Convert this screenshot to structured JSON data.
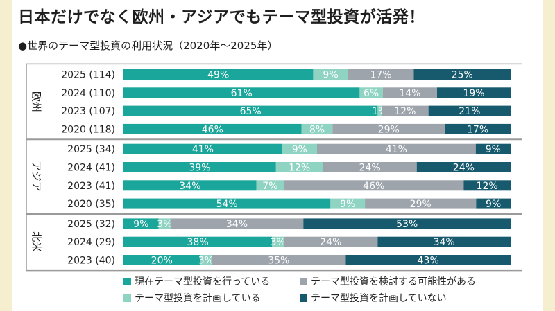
{
  "title": "日本だけでなく欧州・アジアでもテーマ型投資が活発！",
  "subtitle": "●世界のテーマ型投資の利用状況（2020年～2025年）",
  "colors": {
    "current": "#1aa69a",
    "planning": "#8fd3c2",
    "considering": "#9ea4ac",
    "not_planning": "#175a6e",
    "background": "#f6efcf"
  },
  "chart_data": {
    "type": "bar",
    "orientation": "horizontal",
    "stacked": true,
    "percent": true,
    "series": [
      {
        "key": "current",
        "name": "現在テーマ型投資を行っている"
      },
      {
        "key": "planning",
        "name": "テーマ型投資を計画している"
      },
      {
        "key": "considering",
        "name": "テーマ型投資を検討する可能性がある"
      },
      {
        "key": "not_planning",
        "name": "テーマ型投資を計画していない"
      }
    ],
    "groups": [
      {
        "name": "欧州",
        "rows": [
          {
            "label": "2025 (114)",
            "values": [
              49,
              9,
              17,
              25
            ],
            "labels": [
              "49%",
              "9%",
              "17%",
              "25%"
            ]
          },
          {
            "label": "2024 (110)",
            "values": [
              61,
              6,
              14,
              19
            ],
            "labels": [
              "61%",
              "6%",
              "14%",
              "19%"
            ]
          },
          {
            "label": "2023 (107)",
            "values": [
              65,
              1,
              12,
              21
            ],
            "labels": [
              "65%",
              "1%",
              "12%",
              "21%"
            ]
          },
          {
            "label": "2020 (118)",
            "values": [
              46,
              8,
              29,
              17
            ],
            "labels": [
              "46%",
              "8%",
              "29%",
              "17%"
            ]
          }
        ]
      },
      {
        "name": "アジア",
        "rows": [
          {
            "label": "2025 (34)",
            "values": [
              41,
              9,
              41,
              9
            ],
            "labels": [
              "41%",
              "9%",
              "41%",
              "9%"
            ]
          },
          {
            "label": "2024 (41)",
            "values": [
              39,
              12,
              24,
              24
            ],
            "labels": [
              "39%",
              "12%",
              "24%",
              "24%"
            ]
          },
          {
            "label": "2023 (41)",
            "values": [
              34,
              7,
              46,
              12
            ],
            "labels": [
              "34%",
              "7%",
              "46%",
              "12%"
            ]
          },
          {
            "label": "2020 (35)",
            "values": [
              54,
              9,
              29,
              9
            ],
            "labels": [
              "54%",
              "9%",
              "29%",
              "9%"
            ]
          }
        ]
      },
      {
        "name": "北米",
        "rows": [
          {
            "label": "2025 (32)",
            "values": [
              9,
              3,
              34,
              53
            ],
            "labels": [
              "9%",
              "3%",
              "34%",
              "53%"
            ]
          },
          {
            "label": "2024 (29)",
            "values": [
              38,
              3,
              24,
              34
            ],
            "labels": [
              "38%",
              "3%",
              "24%",
              "34%"
            ]
          },
          {
            "label": "2023 (40)",
            "values": [
              20,
              3,
              35,
              43
            ],
            "labels": [
              "20%",
              "3%",
              "35%",
              "43%"
            ]
          }
        ]
      }
    ],
    "legend": [
      "現在テーマ型投資を行っている",
      "テーマ型投資を検討する可能性がある",
      "テーマ型投資を計画している",
      "テーマ型投資を計画していない"
    ],
    "legend_placement": "bottom",
    "grid": false
  }
}
